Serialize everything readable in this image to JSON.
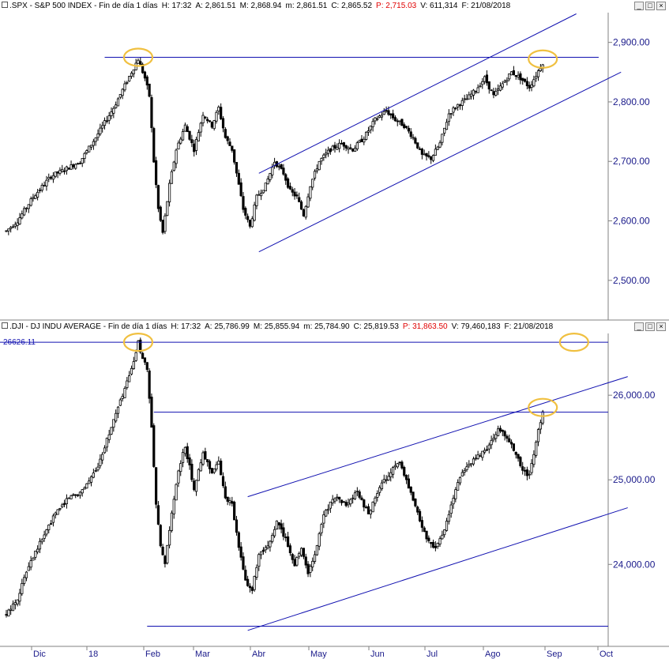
{
  "panels": [
    {
      "symbol": ".SPX",
      "title": ".SPX - S&P 500 INDEX - Fin de día 1 días",
      "fields": [
        {
          "label": "H:",
          "value": "17:32"
        },
        {
          "label": "A:",
          "value": "2,861.51"
        },
        {
          "label": "M:",
          "value": "2,868.94"
        },
        {
          "label": "m:",
          "value": "2,861.51"
        },
        {
          "label": "C:",
          "value": "2,865.52"
        },
        {
          "label": "P",
          "value": ": 2,715.03",
          "color": "#e00000"
        },
        {
          "label": "V:",
          "value": "611,314"
        },
        {
          "label": "F:",
          "value": "21/08/2018"
        }
      ]
    },
    {
      "symbol": ".DJI",
      "title": ".DJI - DJ INDU AVERAGE - Fin de día 1 días",
      "fields": [
        {
          "label": "H:",
          "value": "17:32"
        },
        {
          "label": "A:",
          "value": "25,786.99"
        },
        {
          "label": "M:",
          "value": "25,855.94"
        },
        {
          "label": "m:",
          "value": "25,784.90"
        },
        {
          "label": "C:",
          "value": "25,819.53"
        },
        {
          "label": "P",
          "value": ": 31,863.50",
          "color": "#e00000"
        },
        {
          "label": "V:",
          "value": "79,460,183"
        },
        {
          "label": "F:",
          "value": "21/08/2018"
        }
      ],
      "level_label": "26626.11"
    }
  ],
  "window_buttons": [
    "_",
    "□",
    "×"
  ],
  "x_axis": {
    "labels": [
      "Dic",
      "18",
      "Feb",
      "Mar",
      "Abr",
      "May",
      "Jun",
      "Jul",
      "Ago",
      "Sep",
      "Oct"
    ]
  },
  "colors": {
    "line": "#1010b0",
    "candle": "#000000",
    "highlight": "#f0c040",
    "axis": "#1a1a8a",
    "price_warn": "#e00000"
  },
  "chart_data": [
    {
      "type": "candlestick",
      "series_name": ".SPX",
      "y_ticks": [
        "2,900.00",
        "2,800.00",
        "2,700.00",
        "2,600.00",
        "2,500.00"
      ],
      "y_tick_values": [
        2900,
        2800,
        2700,
        2600,
        2500
      ],
      "ylim": [
        2440,
        2950
      ],
      "x_labels": [
        "Dic",
        "18",
        "Feb",
        "Mar",
        "Abr",
        "May",
        "Jun",
        "Jul",
        "Ago",
        "Sep",
        "Oct"
      ],
      "waypoints": [
        [
          0,
          2583
        ],
        [
          5,
          2600
        ],
        [
          12,
          2640
        ],
        [
          20,
          2675
        ],
        [
          28,
          2690
        ],
        [
          33,
          2700
        ],
        [
          40,
          2740
        ],
        [
          48,
          2790
        ],
        [
          56,
          2850
        ],
        [
          59,
          2872
        ],
        [
          62,
          2840
        ],
        [
          64,
          2810
        ],
        [
          66,
          2700
        ],
        [
          68,
          2620
        ],
        [
          70,
          2580
        ],
        [
          73,
          2660
        ],
        [
          76,
          2720
        ],
        [
          80,
          2760
        ],
        [
          84,
          2720
        ],
        [
          88,
          2780
        ],
        [
          92,
          2760
        ],
        [
          95,
          2790
        ],
        [
          98,
          2740
        ],
        [
          101,
          2720
        ],
        [
          103,
          2680
        ],
        [
          106,
          2620
        ],
        [
          109,
          2590
        ],
        [
          112,
          2640
        ],
        [
          116,
          2660
        ],
        [
          120,
          2700
        ],
        [
          124,
          2680
        ],
        [
          127,
          2650
        ],
        [
          130,
          2640
        ],
        [
          133,
          2610
        ],
        [
          136,
          2660
        ],
        [
          140,
          2700
        ],
        [
          145,
          2720
        ],
        [
          150,
          2730
        ],
        [
          155,
          2720
        ],
        [
          160,
          2740
        ],
        [
          165,
          2770
        ],
        [
          170,
          2785
        ],
        [
          174,
          2770
        ],
        [
          178,
          2760
        ],
        [
          182,
          2740
        ],
        [
          186,
          2710
        ],
        [
          190,
          2705
        ],
        [
          194,
          2730
        ],
        [
          198,
          2780
        ],
        [
          202,
          2795
        ],
        [
          206,
          2805
        ],
        [
          210,
          2820
        ],
        [
          214,
          2840
        ],
        [
          218,
          2810
        ],
        [
          222,
          2830
        ],
        [
          226,
          2850
        ],
        [
          230,
          2840
        ],
        [
          234,
          2825
        ],
        [
          237,
          2845
        ],
        [
          240,
          2866
        ]
      ],
      "lines": [
        {
          "kind": "horizontal",
          "y": 2875,
          "x0": 44,
          "x1": 265
        },
        {
          "kind": "segment",
          "x0": 113,
          "y0": 2680,
          "x1": 255,
          "y1": 2948
        },
        {
          "kind": "segment",
          "x0": 113,
          "y0": 2548,
          "x1": 275,
          "y1": 2850
        }
      ],
      "highlights": [
        {
          "x": 59,
          "y": 2875
        },
        {
          "x": 240,
          "y": 2872
        }
      ]
    },
    {
      "type": "candlestick",
      "series_name": ".DJI",
      "y_ticks": [
        "26,000.00",
        "25,000.00",
        "24,000.00"
      ],
      "y_tick_values": [
        26000,
        25000,
        24000
      ],
      "ylim": [
        23050,
        26730
      ],
      "x_labels": [
        "Dic",
        "18",
        "Feb",
        "Mar",
        "Abr",
        "May",
        "Jun",
        "Jul",
        "Ago",
        "Sep",
        "Oct"
      ],
      "waypoints": [
        [
          0,
          23400
        ],
        [
          5,
          23600
        ],
        [
          10,
          24000
        ],
        [
          16,
          24300
        ],
        [
          22,
          24600
        ],
        [
          28,
          24800
        ],
        [
          33,
          24850
        ],
        [
          40,
          25100
        ],
        [
          48,
          25700
        ],
        [
          56,
          26300
        ],
        [
          59,
          26616
        ],
        [
          61,
          26450
        ],
        [
          63,
          26300
        ],
        [
          65,
          25600
        ],
        [
          67,
          24700
        ],
        [
          69,
          24200
        ],
        [
          71,
          24000
        ],
        [
          74,
          24600
        ],
        [
          77,
          25100
        ],
        [
          80,
          25400
        ],
        [
          84,
          24900
        ],
        [
          88,
          25300
        ],
        [
          92,
          25100
        ],
        [
          95,
          25200
        ],
        [
          98,
          24800
        ],
        [
          101,
          24700
        ],
        [
          104,
          24200
        ],
        [
          107,
          23800
        ],
        [
          110,
          23700
        ],
        [
          113,
          24100
        ],
        [
          117,
          24200
        ],
        [
          121,
          24500
        ],
        [
          125,
          24300
        ],
        [
          129,
          24000
        ],
        [
          132,
          24200
        ],
        [
          135,
          23900
        ],
        [
          138,
          24100
        ],
        [
          142,
          24600
        ],
        [
          147,
          24800
        ],
        [
          152,
          24700
        ],
        [
          157,
          24850
        ],
        [
          162,
          24600
        ],
        [
          167,
          24900
        ],
        [
          172,
          25100
        ],
        [
          176,
          25200
        ],
        [
          180,
          24900
        ],
        [
          184,
          24600
        ],
        [
          188,
          24300
        ],
        [
          192,
          24200
        ],
        [
          196,
          24400
        ],
        [
          200,
          24800
        ],
        [
          204,
          25100
        ],
        [
          208,
          25200
        ],
        [
          212,
          25300
        ],
        [
          216,
          25400
        ],
        [
          220,
          25600
        ],
        [
          224,
          25500
        ],
        [
          228,
          25300
        ],
        [
          231,
          25100
        ],
        [
          234,
          25050
        ],
        [
          237,
          25450
        ],
        [
          240,
          25820
        ]
      ],
      "lines": [
        {
          "kind": "horizontal",
          "y": 26626,
          "x0": -5,
          "x1": 278
        },
        {
          "kind": "horizontal",
          "y": 25800,
          "x0": 66,
          "x1": 275
        },
        {
          "kind": "horizontal",
          "y": 23270,
          "x0": 63,
          "x1": 278
        },
        {
          "kind": "segment",
          "x0": 108,
          "y0": 24800,
          "x1": 278,
          "y1": 26220
        },
        {
          "kind": "segment",
          "x0": 108,
          "y0": 23220,
          "x1": 278,
          "y1": 24670
        }
      ],
      "highlights": [
        {
          "x": 59,
          "y": 26626
        },
        {
          "x": 240,
          "y": 25855
        },
        {
          "x": 254,
          "y": 26626
        }
      ]
    }
  ]
}
